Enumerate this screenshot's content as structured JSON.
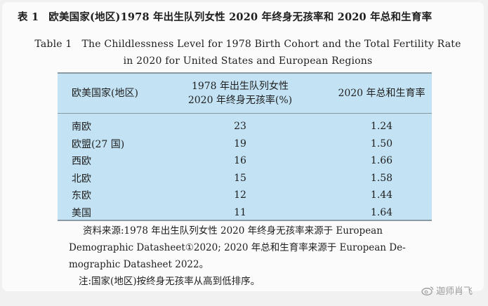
{
  "title": {
    "number_zh": "表 1",
    "text_zh": "欧美国家(地区)1978 年出生队列女性 2020 年终身无孩率和 2020 年总和生育率",
    "label_en": "Table 1",
    "text_en_line1": "The Childlessness Level for 1978 Birth Cohort and the Total Fertility Rate",
    "text_en_line2": "in 2020 for United States and European Regions"
  },
  "table": {
    "headers": {
      "col1": "欧美国家(地区)",
      "col2_line1": "1978 年出生队列女性",
      "col2_line2": "2020 年终身无孩率(%)",
      "col3": "2020 年总和生育率"
    },
    "rows": [
      {
        "region": "南欧",
        "childlessness": "23",
        "tfr": "1.24"
      },
      {
        "region": "欧盟(27 国)",
        "childlessness": "19",
        "tfr": "1.50"
      },
      {
        "region": "西欧",
        "childlessness": "16",
        "tfr": "1.66"
      },
      {
        "region": "北欧",
        "childlessness": "15",
        "tfr": "1.58"
      },
      {
        "region": "东欧",
        "childlessness": "12",
        "tfr": "1.44"
      },
      {
        "region": "美国",
        "childlessness": "11",
        "tfr": "1.64"
      }
    ]
  },
  "notes": {
    "source_line1": "资料来源:1978 年出生队列女性 2020 年终身无孩率来源于 European",
    "source_line2": "Demographic Datasheet①2020; 2020 年总和生育率来源于 European De-",
    "source_line3": "mographic Datasheet 2022。",
    "note": "注:国家(地区)按终身无孩率从高到低排序。"
  },
  "watermark": {
    "text": "迦师肖飞",
    "icon": "weibo-icon"
  }
}
